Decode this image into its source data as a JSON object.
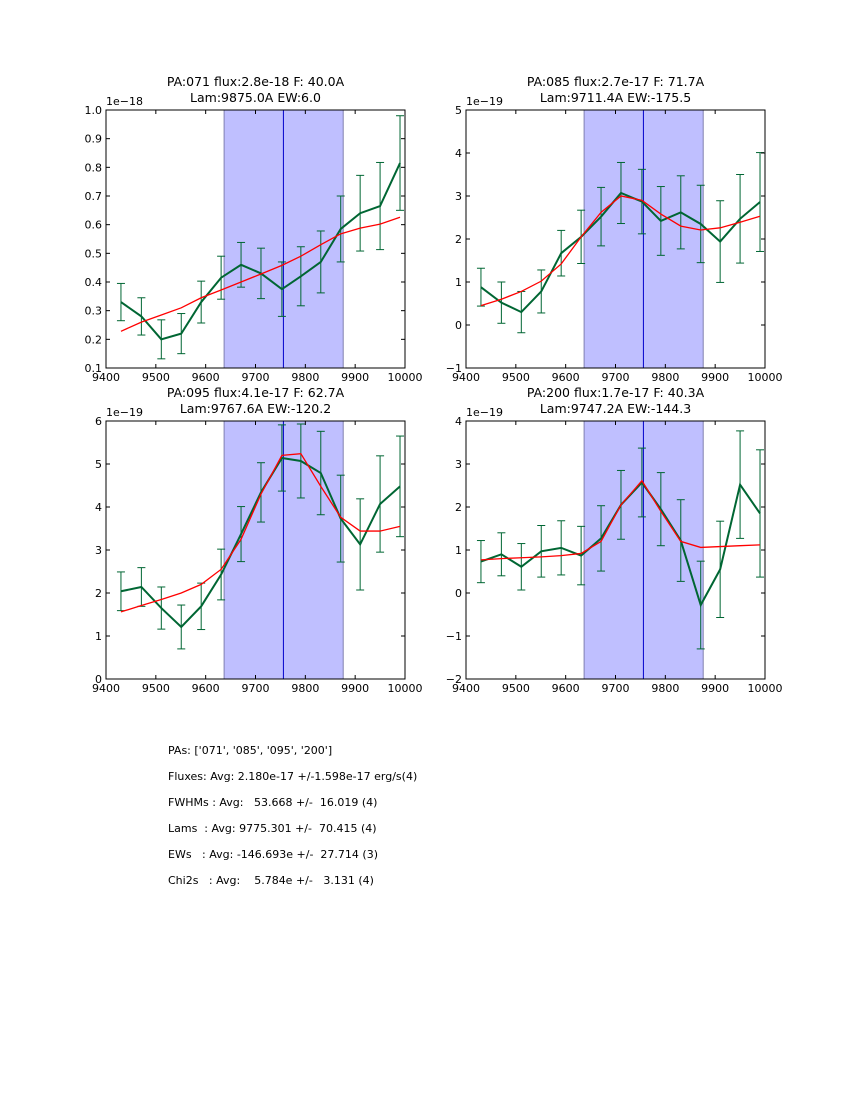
{
  "chart_data": [
    {
      "type": "line",
      "title_lines": [
        "PA:071 flux:2.8e-18 F: 40.0A",
        "Lam:9875.0A EW:6.0"
      ],
      "offset_label": "1e−18",
      "xlim": [
        9400,
        10000
      ],
      "ylim": [
        0.1,
        1.0
      ],
      "xticks": [
        9400,
        9500,
        9600,
        9700,
        9800,
        9900,
        10000
      ],
      "yticks": [
        0.1,
        0.2,
        0.3,
        0.4,
        0.5,
        0.6,
        0.7,
        0.8,
        0.9,
        1.0
      ],
      "ytick_labels": [
        "0.1",
        "0.2",
        "0.3",
        "0.4",
        "0.5",
        "0.6",
        "0.7",
        "0.8",
        "0.9",
        "1.0"
      ],
      "shaded_region": [
        9637,
        9876
      ],
      "vline": 9756,
      "x": [
        9430,
        9471,
        9511,
        9551,
        9591,
        9631,
        9671,
        9711,
        9753,
        9791,
        9831,
        9871,
        9910,
        9950,
        9990
      ],
      "series": [
        {
          "name": "data",
          "color": "#006633",
          "values": [
            0.33,
            0.28,
            0.2,
            0.22,
            0.33,
            0.415,
            0.46,
            0.43,
            0.375,
            0.42,
            0.47,
            0.585,
            0.64,
            0.665,
            0.815
          ],
          "errors": [
            0.065,
            0.065,
            0.068,
            0.07,
            0.073,
            0.075,
            0.078,
            0.088,
            0.095,
            0.103,
            0.108,
            0.115,
            0.132,
            0.152,
            0.165
          ]
        },
        {
          "name": "fit",
          "color": "#ff0000",
          "values": [
            0.228,
            0.26,
            0.285,
            0.31,
            0.345,
            0.372,
            0.4,
            0.428,
            0.458,
            0.49,
            0.53,
            0.568,
            0.588,
            0.602,
            0.626
          ]
        }
      ]
    },
    {
      "type": "line",
      "title_lines": [
        "PA:085 flux:2.7e-17 F: 71.7A",
        "Lam:9711.4A EW:-175.5"
      ],
      "offset_label": "1e−19",
      "xlim": [
        9400,
        10000
      ],
      "ylim": [
        -1,
        5
      ],
      "xticks": [
        9400,
        9500,
        9600,
        9700,
        9800,
        9900,
        10000
      ],
      "yticks": [
        -1,
        0,
        1,
        2,
        3,
        4,
        5
      ],
      "ytick_labels": [
        "−1",
        "0",
        "1",
        "2",
        "3",
        "4",
        "5"
      ],
      "shaded_region": [
        9637,
        9876
      ],
      "vline": 9756,
      "x": [
        9430,
        9471,
        9511,
        9551,
        9591,
        9631,
        9671,
        9711,
        9753,
        9791,
        9831,
        9871,
        9910,
        9950,
        9990
      ],
      "series": [
        {
          "name": "data",
          "color": "#006633",
          "values": [
            0.88,
            0.52,
            0.3,
            0.78,
            1.67,
            2.05,
            2.52,
            3.07,
            2.87,
            2.42,
            2.62,
            2.35,
            1.94,
            2.47,
            2.86
          ],
          "errors": [
            0.44,
            0.48,
            0.48,
            0.5,
            0.53,
            0.62,
            0.68,
            0.71,
            0.75,
            0.8,
            0.85,
            0.9,
            0.95,
            1.03,
            1.15
          ]
        },
        {
          "name": "fit",
          "color": "#ff0000",
          "values": [
            0.45,
            0.6,
            0.78,
            1.02,
            1.42,
            2.05,
            2.62,
            3.0,
            2.9,
            2.58,
            2.3,
            2.21,
            2.26,
            2.39,
            2.53
          ]
        }
      ]
    },
    {
      "type": "line",
      "title_lines": [
        "PA:095 flux:4.1e-17 F: 62.7A",
        "Lam:9767.6A EW:-120.2"
      ],
      "offset_label": "1e−19",
      "xlim": [
        9400,
        10000
      ],
      "ylim": [
        0,
        6
      ],
      "xticks": [
        9400,
        9500,
        9600,
        9700,
        9800,
        9900,
        10000
      ],
      "yticks": [
        0,
        1,
        2,
        3,
        4,
        5,
        6
      ],
      "ytick_labels": [
        "0",
        "1",
        "2",
        "3",
        "4",
        "5",
        "6"
      ],
      "shaded_region": [
        9637,
        9876
      ],
      "vline": 9756,
      "x": [
        9430,
        9471,
        9511,
        9551,
        9591,
        9631,
        9671,
        9711,
        9753,
        9791,
        9831,
        9871,
        9910,
        9950,
        9990
      ],
      "series": [
        {
          "name": "data",
          "color": "#006633",
          "values": [
            2.04,
            2.14,
            1.65,
            1.21,
            1.69,
            2.43,
            3.37,
            4.34,
            5.14,
            5.07,
            4.79,
            3.73,
            3.13,
            4.07,
            4.48
          ],
          "errors": [
            0.45,
            0.45,
            0.49,
            0.51,
            0.54,
            0.59,
            0.64,
            0.69,
            0.77,
            0.86,
            0.97,
            1.01,
            1.06,
            1.12,
            1.17
          ]
        },
        {
          "name": "fit",
          "color": "#ff0000",
          "values": [
            1.56,
            1.71,
            1.85,
            2.0,
            2.2,
            2.55,
            3.25,
            4.3,
            5.2,
            5.24,
            4.48,
            3.76,
            3.44,
            3.44,
            3.55
          ]
        }
      ]
    },
    {
      "type": "line",
      "title_lines": [
        "PA:200 flux:1.7e-17 F: 40.3A",
        "Lam:9747.2A EW:-144.3"
      ],
      "offset_label": "1e−19",
      "xlim": [
        9400,
        10000
      ],
      "ylim": [
        -2,
        4
      ],
      "xticks": [
        9400,
        9500,
        9600,
        9700,
        9800,
        9900,
        10000
      ],
      "yticks": [
        -2,
        -1,
        0,
        1,
        2,
        3,
        4
      ],
      "ytick_labels": [
        "−2",
        "−1",
        "0",
        "1",
        "2",
        "3",
        "4"
      ],
      "shaded_region": [
        9637,
        9876
      ],
      "vline": 9756,
      "x": [
        9430,
        9471,
        9511,
        9551,
        9591,
        9631,
        9671,
        9711,
        9753,
        9791,
        9831,
        9871,
        9910,
        9950,
        9990
      ],
      "series": [
        {
          "name": "data",
          "color": "#006633",
          "values": [
            0.73,
            0.9,
            0.61,
            0.97,
            1.05,
            0.87,
            1.27,
            2.05,
            2.57,
            1.95,
            1.22,
            -0.28,
            0.55,
            2.52,
            1.85
          ],
          "errors": [
            0.49,
            0.5,
            0.54,
            0.6,
            0.63,
            0.68,
            0.76,
            0.8,
            0.8,
            0.85,
            0.95,
            1.02,
            1.12,
            1.25,
            1.48
          ]
        },
        {
          "name": "fit",
          "color": "#ff0000",
          "values": [
            0.77,
            0.8,
            0.82,
            0.84,
            0.87,
            0.92,
            1.2,
            2.05,
            2.61,
            1.9,
            1.2,
            1.06,
            1.08,
            1.1,
            1.12
          ]
        }
      ]
    }
  ],
  "stats": {
    "lines": [
      "PAs: ['071', '085', '095', '200']",
      "Fluxes: Avg: 2.180e-17 +/-1.598e-17 erg/s(4)",
      "FWHMs : Avg:   53.668 +/-  16.019 (4)",
      "Lams  : Avg: 9775.301 +/-  70.415 (4)",
      "EWs   : Avg: -146.693e +/-  27.714 (3)",
      "Chi2s   : Avg:    5.784e +/-   3.131 (4)"
    ]
  },
  "colors": {
    "shade_fill": "#bfbfff",
    "shade_edge": "#8080b0",
    "vline": "#0000cc",
    "data": "#006633",
    "fit": "#ff0000"
  }
}
